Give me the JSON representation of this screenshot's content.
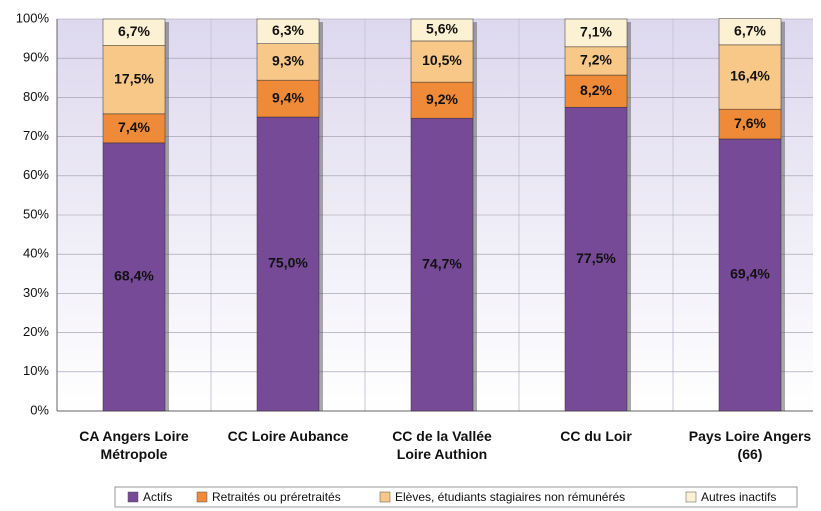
{
  "chart_data": {
    "type": "stacked_bar",
    "categories": [
      [
        "CA Angers Loire",
        "Métropole"
      ],
      [
        "CC  Loire Aubance"
      ],
      [
        "CC de la Vallée",
        "Loire Authion"
      ],
      [
        "CC du Loir"
      ],
      [
        "Pays Loire Angers",
        "(66)"
      ]
    ],
    "series": [
      {
        "name": "Actifs",
        "color": "#764a96",
        "values": [
          68.4,
          75.0,
          74.7,
          77.5,
          69.4
        ],
        "value_labels": [
          "68,4%",
          "75,0%",
          "74,7%",
          "77,5%",
          "69,4%"
        ]
      },
      {
        "name": "Retraités ou préretraités",
        "color": "#ef8a38",
        "values": [
          7.4,
          9.4,
          9.2,
          8.2,
          7.6
        ],
        "value_labels": [
          "7,4%",
          "9,4%",
          "9,2%",
          "8,2%",
          "7,6%"
        ]
      },
      {
        "name": "Elèves, étudiants stagiaires non rémunérés",
        "color": "#f8c889",
        "values": [
          17.5,
          9.3,
          10.5,
          7.2,
          16.4
        ],
        "value_labels": [
          "17,5%",
          "9,3%",
          "10,5%",
          "7,2%",
          "16,4%"
        ]
      },
      {
        "name": "Autres inactifs",
        "color": "#fdf1d3",
        "values": [
          6.7,
          6.3,
          5.6,
          7.1,
          6.7
        ],
        "value_labels": [
          "6,7%",
          "6,3%",
          "5,6%",
          "7,1%",
          "6,7%"
        ]
      }
    ],
    "ylim": [
      0,
      100
    ],
    "yticks": [
      {
        "value": 0,
        "label": "0%"
      },
      {
        "value": 10,
        "label": "10%"
      },
      {
        "value": 20,
        "label": "20%"
      },
      {
        "value": 30,
        "label": "30%"
      },
      {
        "value": 40,
        "label": "40%"
      },
      {
        "value": 50,
        "label": "50%"
      },
      {
        "value": 60,
        "label": "60%"
      },
      {
        "value": 70,
        "label": "70%"
      },
      {
        "value": 80,
        "label": "80%"
      },
      {
        "value": 90,
        "label": "90%"
      },
      {
        "value": 100,
        "label": "100%"
      }
    ],
    "grid": true,
    "legend": "bottom"
  }
}
